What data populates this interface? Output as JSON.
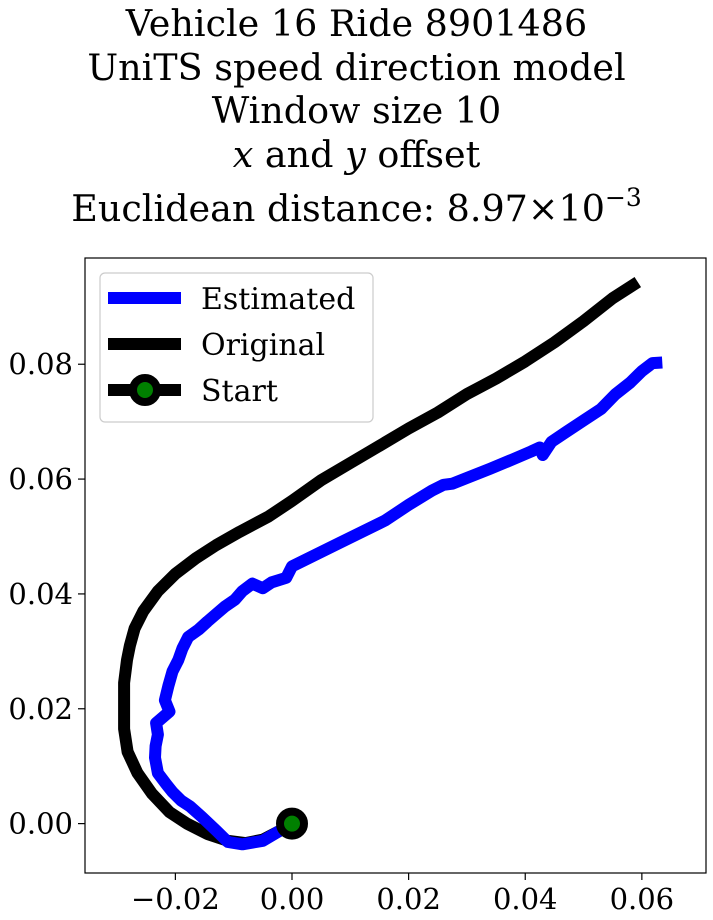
{
  "chart_data": {
    "type": "line",
    "title_lines": {
      "line1": "Vehicle 16 Ride 8901486",
      "line2": "UniTS speed direction model",
      "line3": "Window size 10",
      "line4_var1": "x",
      "line4_and": " and ",
      "line4_var2": "y",
      "line4_rest": " offset",
      "line5_prefix": "Euclidean distance: 8.97",
      "line5_times": "×",
      "line5_base": "10",
      "line5_exp": "−3"
    },
    "xlabel": "",
    "ylabel": "",
    "xlim": [
      -0.0355,
      0.071
    ],
    "ylim": [
      -0.0086,
      0.0985
    ],
    "x_ticks": [
      -0.02,
      0.0,
      0.02,
      0.04,
      0.06
    ],
    "x_tick_labels": [
      "−0.02",
      "0.00",
      "0.02",
      "0.04",
      "0.06"
    ],
    "y_ticks": [
      0.0,
      0.02,
      0.04,
      0.06,
      0.08
    ],
    "y_tick_labels": [
      "0.00",
      "0.02",
      "0.04",
      "0.06",
      "0.08"
    ],
    "grid": false,
    "legend_position": "upper-left",
    "legend": [
      {
        "label": "Estimated",
        "color": "#0000ff"
      },
      {
        "label": "Original",
        "color": "#000000"
      },
      {
        "label": "Start",
        "color": "#000000",
        "marker_face": "#008000"
      }
    ],
    "series": [
      {
        "name": "Original",
        "color": "#000000",
        "points": [
          [
            0.0,
            0.0
          ],
          [
            -0.002,
            -0.0012
          ],
          [
            -0.005,
            -0.0028
          ],
          [
            -0.008,
            -0.0034
          ],
          [
            -0.011,
            -0.003
          ],
          [
            -0.0145,
            -0.0018
          ],
          [
            -0.018,
            0.0
          ],
          [
            -0.021,
            0.002
          ],
          [
            -0.024,
            0.0052
          ],
          [
            -0.0265,
            0.0088
          ],
          [
            -0.0282,
            0.0125
          ],
          [
            -0.0288,
            0.0165
          ],
          [
            -0.0288,
            0.0205
          ],
          [
            -0.0288,
            0.0245
          ],
          [
            -0.0283,
            0.0285
          ],
          [
            -0.0278,
            0.031
          ],
          [
            -0.027,
            0.034
          ],
          [
            -0.0255,
            0.037
          ],
          [
            -0.023,
            0.0405
          ],
          [
            -0.02,
            0.0435
          ],
          [
            -0.0165,
            0.0462
          ],
          [
            -0.013,
            0.0485
          ],
          [
            -0.009,
            0.0508
          ],
          [
            -0.004,
            0.0535
          ],
          [
            0.0,
            0.0562
          ],
          [
            0.005,
            0.0598
          ],
          [
            0.01,
            0.0628
          ],
          [
            0.015,
            0.0658
          ],
          [
            0.02,
            0.0688
          ],
          [
            0.025,
            0.0716
          ],
          [
            0.03,
            0.0748
          ],
          [
            0.035,
            0.0775
          ],
          [
            0.04,
            0.0805
          ],
          [
            0.045,
            0.0838
          ],
          [
            0.05,
            0.0875
          ],
          [
            0.055,
            0.0915
          ],
          [
            0.0593,
            0.0943
          ]
        ]
      },
      {
        "name": "Estimated",
        "color": "#0000ff",
        "points": [
          [
            0.0,
            0.0
          ],
          [
            -0.002,
            -0.0012
          ],
          [
            -0.005,
            -0.003
          ],
          [
            -0.0085,
            -0.0036
          ],
          [
            -0.011,
            -0.0032
          ],
          [
            -0.013,
            -0.0012
          ],
          [
            -0.0155,
            0.0012
          ],
          [
            -0.0175,
            0.003
          ],
          [
            -0.019,
            0.004
          ],
          [
            -0.0205,
            0.0055
          ],
          [
            -0.0215,
            0.0068
          ],
          [
            -0.023,
            0.0088
          ],
          [
            -0.0235,
            0.0115
          ],
          [
            -0.0234,
            0.0135
          ],
          [
            -0.023,
            0.0155
          ],
          [
            -0.0233,
            0.0175
          ],
          [
            -0.021,
            0.0195
          ],
          [
            -0.0218,
            0.0215
          ],
          [
            -0.0212,
            0.024
          ],
          [
            -0.0205,
            0.0265
          ],
          [
            -0.0195,
            0.0285
          ],
          [
            -0.0188,
            0.0305
          ],
          [
            -0.0178,
            0.0325
          ],
          [
            -0.016,
            0.0338
          ],
          [
            -0.0145,
            0.0352
          ],
          [
            -0.013,
            0.0365
          ],
          [
            -0.0115,
            0.0378
          ],
          [
            -0.0098,
            0.039
          ],
          [
            -0.0085,
            0.0405
          ],
          [
            -0.0068,
            0.0418
          ],
          [
            -0.005,
            0.041
          ],
          [
            -0.0035,
            0.042
          ],
          [
            -0.001,
            0.0428
          ],
          [
            0.0,
            0.0448
          ],
          [
            0.004,
            0.0468
          ],
          [
            0.008,
            0.0488
          ],
          [
            0.012,
            0.0508
          ],
          [
            0.016,
            0.0528
          ],
          [
            0.02,
            0.0555
          ],
          [
            0.024,
            0.058
          ],
          [
            0.026,
            0.059
          ],
          [
            0.0275,
            0.0592
          ],
          [
            0.03,
            0.0602
          ],
          [
            0.034,
            0.0618
          ],
          [
            0.038,
            0.0635
          ],
          [
            0.041,
            0.0648
          ],
          [
            0.0425,
            0.0655
          ],
          [
            0.043,
            0.0642
          ],
          [
            0.0445,
            0.0665
          ],
          [
            0.047,
            0.0682
          ],
          [
            0.05,
            0.0702
          ],
          [
            0.053,
            0.0722
          ],
          [
            0.0555,
            0.0748
          ],
          [
            0.058,
            0.0768
          ],
          [
            0.06,
            0.0788
          ],
          [
            0.0618,
            0.0802
          ],
          [
            0.0635,
            0.0803
          ]
        ]
      }
    ],
    "start_point": [
      0.0,
      0.0
    ]
  }
}
